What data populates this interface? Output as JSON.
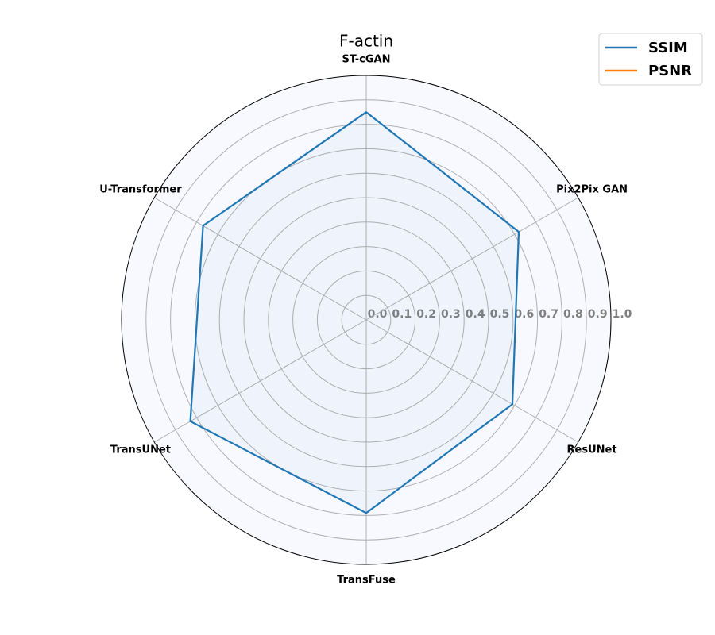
{
  "chart_data": {
    "type": "radar",
    "title": "F-actin",
    "categories": [
      "ST-cGAN",
      "Pix2Pix GAN",
      "ResUNet",
      "TransFuse",
      "TransUNet",
      "U-Transformer"
    ],
    "series": [
      {
        "name": "SSIM",
        "color": "#1f77b4",
        "values": [
          0.85,
          0.72,
          0.69,
          0.79,
          0.83,
          0.77
        ]
      },
      {
        "name": "PSNR",
        "color": "#ff7f0e",
        "values": [
          null,
          null,
          null,
          null,
          null,
          null
        ]
      }
    ],
    "ylim": [
      0,
      1
    ],
    "yticks": [
      {
        "value": 0,
        "label": "0.0"
      },
      0.1,
      0.2,
      0.3,
      0.4,
      0.5,
      0.6,
      0.7,
      0.8,
      0.9,
      {
        "value": 1,
        "label": "1.0"
      }
    ],
    "grid": true,
    "legend": "upper right"
  }
}
